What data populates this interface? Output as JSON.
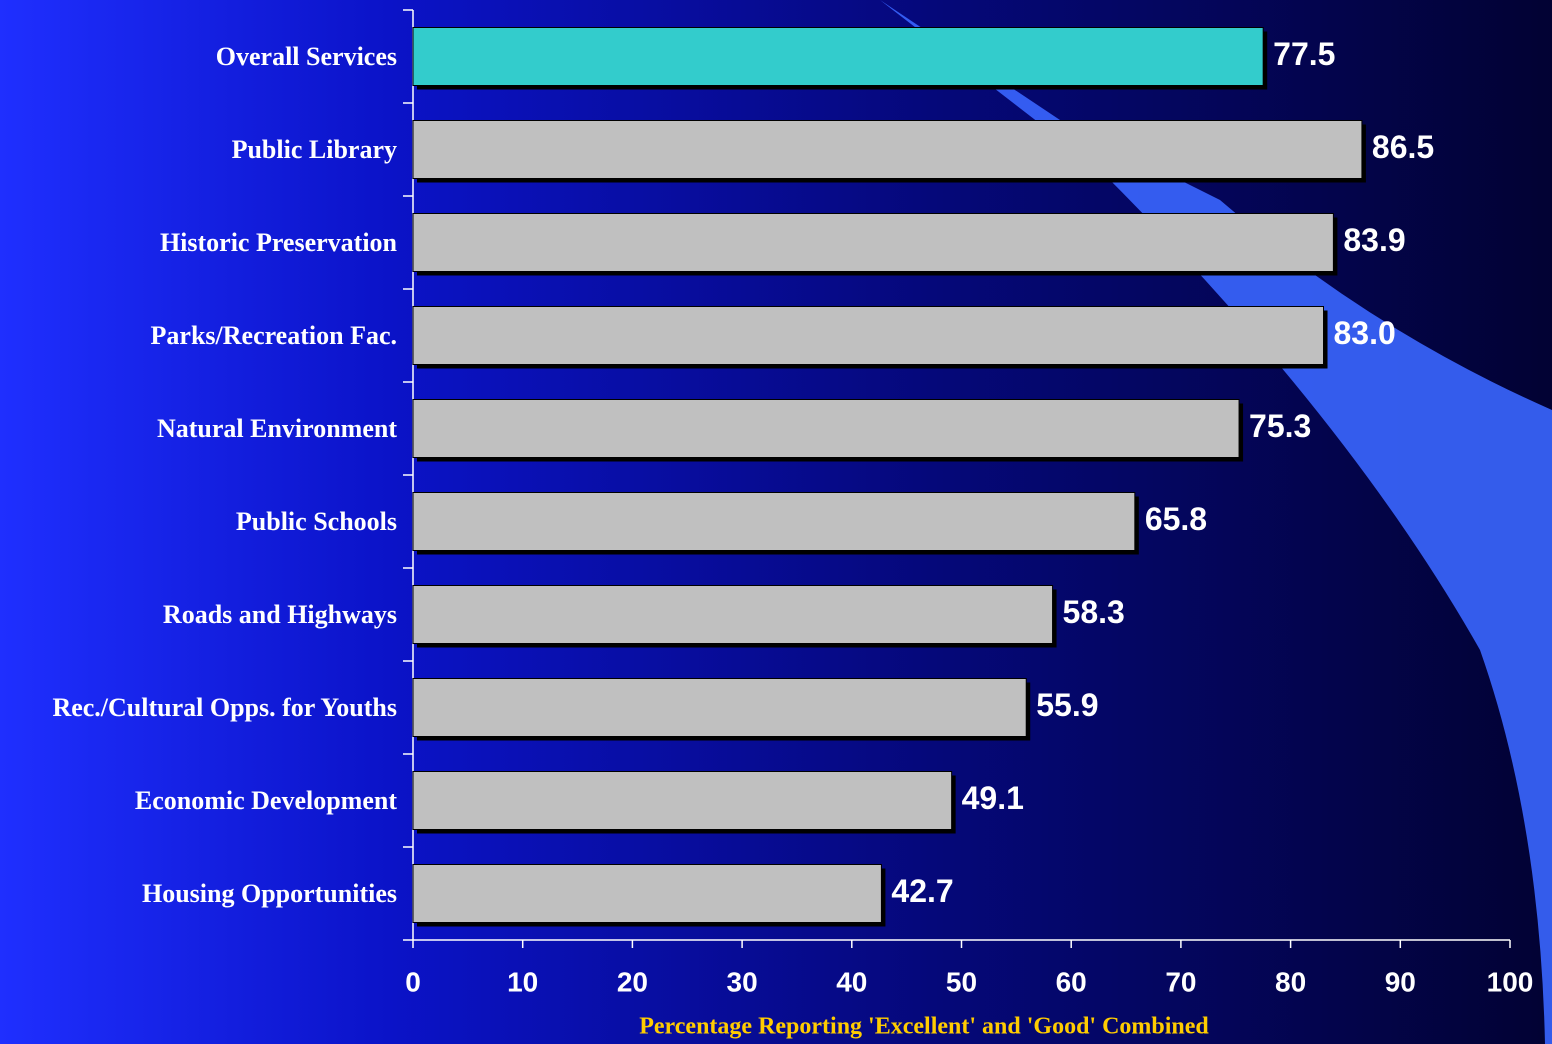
{
  "chart_data": {
    "type": "barh",
    "categories": [
      "Overall Services",
      "Public Library",
      "Historic Preservation",
      "Parks/Recreation Fac.",
      "Natural Environment",
      "Public Schools",
      "Roads and Highways",
      "Rec./Cultural Opps. for Youths",
      "Economic Development",
      "Housing Opportunities"
    ],
    "values": [
      77.5,
      86.5,
      83.9,
      83.0,
      75.3,
      65.8,
      58.3,
      55.9,
      49.1,
      42.7
    ],
    "value_labels": [
      "77.5",
      "86.5",
      "83.9",
      "83.0",
      "75.3",
      "65.8",
      "58.3",
      "55.9",
      "49.1",
      "42.7"
    ],
    "colors": [
      "#33cccc",
      "#c0c0c0",
      "#c0c0c0",
      "#c0c0c0",
      "#c0c0c0",
      "#c0c0c0",
      "#c0c0c0",
      "#c0c0c0",
      "#c0c0c0",
      "#c0c0c0"
    ],
    "xlabel": "Percentage Reporting 'Excellent' and 'Good' Combined",
    "xlim": [
      0,
      100
    ],
    "xticks": [
      0,
      10,
      20,
      30,
      40,
      50,
      60,
      70,
      80,
      90,
      100
    ]
  }
}
